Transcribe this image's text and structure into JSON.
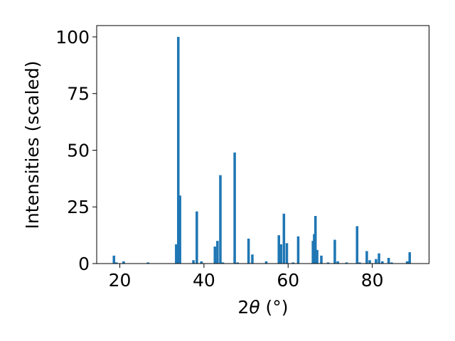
{
  "chart_data": {
    "type": "bar",
    "xlabel_prefix": "2",
    "xlabel_symbol": "θ",
    "xlabel_suffix": " (°)",
    "ylabel": "Intensities (scaled)",
    "xlim": [
      14.5,
      93.5
    ],
    "ylim": [
      0,
      105
    ],
    "xticks": [
      20,
      40,
      60,
      80
    ],
    "yticks": [
      0,
      25,
      50,
      75,
      100
    ],
    "bar_width": 0.6,
    "bar_color": "#1f77b4",
    "x": [
      18.6,
      19.2,
      20.9,
      26.7,
      33.4,
      33.9,
      34.3,
      37.5,
      38.3,
      39.4,
      42.6,
      43.2,
      43.9,
      44.5,
      47.3,
      48.0,
      50.6,
      51.5,
      54.8,
      57.8,
      58.3,
      59.0,
      59.7,
      61.2,
      62.4,
      65.9,
      66.2,
      66.5,
      66.9,
      67.9,
      69.5,
      71.1,
      71.8,
      73.9,
      76.4,
      77.0,
      78.7,
      79.4,
      80.9,
      81.6,
      82.4,
      83.9,
      84.6,
      88.3,
      88.9
    ],
    "values": [
      3.5,
      0.5,
      1,
      0.5,
      8.5,
      100,
      30,
      1.5,
      23,
      1,
      7.5,
      10,
      39,
      0.5,
      49,
      0.5,
      11,
      4,
      1,
      12.5,
      8.5,
      22,
      9,
      0.5,
      12,
      10,
      13,
      21,
      6,
      3.5,
      0.5,
      10.5,
      1,
      0.5,
      16.5,
      0.5,
      5.5,
      1.5,
      2,
      4.5,
      1,
      2.5,
      0.5,
      1,
      5
    ]
  }
}
